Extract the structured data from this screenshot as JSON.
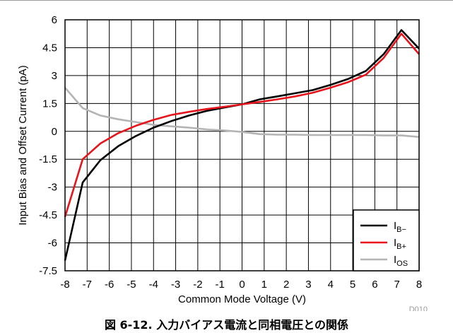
{
  "caption": "図 6-12. 入力バイアス電流と同相電圧との関係",
  "chart_data": {
    "type": "line",
    "xlabel": "Common Mode Voltage (V)",
    "ylabel": "Input Bias and Offset Current (pA)",
    "chart_id": "D010",
    "xlim": [
      -8,
      8
    ],
    "ylim": [
      -7.5,
      6
    ],
    "x_ticks": [
      "-8",
      "-7",
      "-6",
      "-5",
      "-4",
      "-3",
      "-2",
      "-1",
      "0",
      "1",
      "2",
      "3",
      "4",
      "5",
      "6",
      "7",
      "8"
    ],
    "y_ticks": [
      "6",
      "4.5",
      "3",
      "1.5",
      "0",
      "-1.5",
      "-3",
      "-4.5",
      "-6",
      "-7.5"
    ],
    "grid": true,
    "legend_position": "bottom-right",
    "series": [
      {
        "name": "I",
        "subscript": "B−",
        "color": "#000000",
        "points": [
          [
            -8,
            -6.95
          ],
          [
            -7.2,
            -2.75
          ],
          [
            -6.4,
            -1.55
          ],
          [
            -5.6,
            -0.8
          ],
          [
            -4.8,
            -0.25
          ],
          [
            -4,
            0.2
          ],
          [
            -3.2,
            0.55
          ],
          [
            -2.4,
            0.85
          ],
          [
            -1.6,
            1.1
          ],
          [
            -0.8,
            1.28
          ],
          [
            0,
            1.45
          ],
          [
            0.8,
            1.72
          ],
          [
            1.6,
            1.88
          ],
          [
            2.4,
            2.05
          ],
          [
            3.2,
            2.22
          ],
          [
            4,
            2.5
          ],
          [
            4.8,
            2.82
          ],
          [
            5.6,
            3.25
          ],
          [
            6.4,
            4.15
          ],
          [
            7.2,
            5.45
          ],
          [
            8,
            4.45
          ]
        ]
      },
      {
        "name": "I",
        "subscript": "B+",
        "color": "#e8141b",
        "points": [
          [
            -8,
            -4.6
          ],
          [
            -7.2,
            -1.5
          ],
          [
            -6.4,
            -0.65
          ],
          [
            -5.6,
            -0.1
          ],
          [
            -4.8,
            0.3
          ],
          [
            -4,
            0.62
          ],
          [
            -3.2,
            0.88
          ],
          [
            -2.4,
            1.05
          ],
          [
            -1.6,
            1.2
          ],
          [
            -0.8,
            1.32
          ],
          [
            0,
            1.45
          ],
          [
            0.8,
            1.58
          ],
          [
            1.6,
            1.72
          ],
          [
            2.4,
            1.88
          ],
          [
            3.2,
            2.08
          ],
          [
            4,
            2.35
          ],
          [
            4.8,
            2.65
          ],
          [
            5.6,
            3.05
          ],
          [
            6.4,
            3.95
          ],
          [
            7.2,
            5.25
          ],
          [
            8,
            4.15
          ]
        ]
      },
      {
        "name": "I",
        "subscript": "OS",
        "color": "#b4b4b4",
        "points": [
          [
            -8,
            2.35
          ],
          [
            -7.2,
            1.25
          ],
          [
            -6.4,
            0.85
          ],
          [
            -5.6,
            0.65
          ],
          [
            -4.8,
            0.5
          ],
          [
            -4,
            0.35
          ],
          [
            -3.2,
            0.27
          ],
          [
            -2.4,
            0.2
          ],
          [
            -1.6,
            0.1
          ],
          [
            -0.8,
            0.05
          ],
          [
            0,
            -0.03
          ],
          [
            0.8,
            -0.15
          ],
          [
            1.6,
            -0.18
          ],
          [
            2.4,
            -0.18
          ],
          [
            3.2,
            -0.2
          ],
          [
            4,
            -0.2
          ],
          [
            4.8,
            -0.2
          ],
          [
            5.6,
            -0.2
          ],
          [
            6.4,
            -0.22
          ],
          [
            7.2,
            -0.22
          ],
          [
            8,
            -0.3
          ]
        ]
      }
    ]
  }
}
